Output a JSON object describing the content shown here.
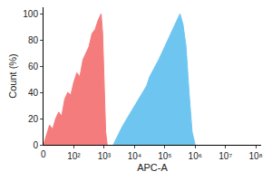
{
  "chart_data": {
    "type": "area",
    "x_label": "APC-A",
    "y_label": "Count (%)",
    "log": "x",
    "grid": false,
    "xlim": [
      10,
      150000000
    ],
    "ylim": [
      0,
      105
    ],
    "xticks": [
      {
        "value": 100,
        "label": "10²"
      },
      {
        "value": 1000,
        "label": "10³"
      },
      {
        "value": 10000,
        "label": "10⁴"
      },
      {
        "value": 100000,
        "label": "10⁵"
      },
      {
        "value": 1000000,
        "label": "10⁶"
      },
      {
        "value": 10000000,
        "label": "10⁷"
      },
      {
        "value": 100000000,
        "label": "10⁸"
      }
    ],
    "yticks": [
      0,
      20,
      40,
      60,
      80,
      100
    ],
    "annotations": [
      {
        "text": "0"
      }
    ],
    "series": [
      {
        "color": "#f47c7c",
        "x": [
          10,
          12.6,
          15.8,
          20,
          25.1,
          31.6,
          39.8,
          50.1,
          63.1,
          79.4,
          100,
          126,
          158,
          200,
          251,
          316,
          398,
          501,
          631,
          708,
          794,
          891,
          1000,
          1122,
          1259
        ],
        "values": [
          0,
          8,
          15,
          12,
          20,
          25,
          22,
          35,
          40,
          38,
          48,
          55,
          52,
          65,
          70,
          75,
          85,
          88,
          95,
          98,
          100,
          85,
          40,
          10,
          0
        ]
      },
      {
        "color": "#6ec6f0",
        "x": [
          1995,
          2512,
          3162,
          3981,
          5012,
          6310,
          7943,
          10000,
          12589,
          15849,
          19953,
          25119,
          31623,
          39811,
          50119,
          63096,
          79433,
          100000,
          125893,
          158489,
          199526,
          251189,
          316228,
          398107,
          501187,
          630957,
          794328,
          1000000
        ],
        "values": [
          0,
          5,
          10,
          14,
          18,
          22,
          25,
          30,
          33,
          38,
          42,
          45,
          52,
          56,
          60,
          65,
          70,
          75,
          80,
          85,
          90,
          96,
          100,
          92,
          75,
          40,
          10,
          0
        ]
      }
    ]
  }
}
